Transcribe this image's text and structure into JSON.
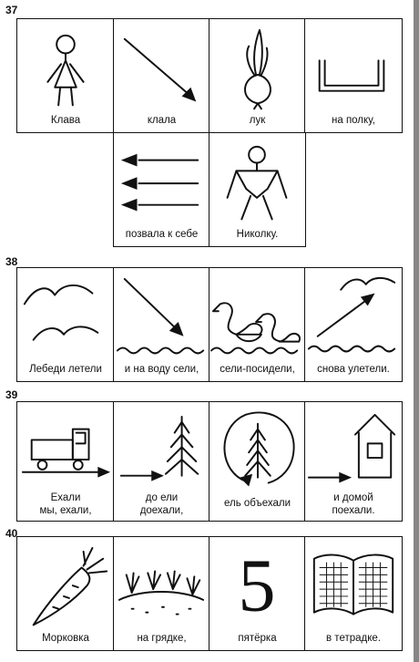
{
  "exercises": [
    {
      "number": "37",
      "cells": [
        {
          "caption": "Клава",
          "icon": "stick-figure-girl-icon"
        },
        {
          "caption": "клала",
          "icon": "arrow-down-right-icon"
        },
        {
          "caption": "лук",
          "icon": "onion-icon"
        },
        {
          "caption": "на полку,",
          "icon": "shelf-icon"
        },
        {
          "caption": "позвала к себе",
          "icon": "arrows-left-icon"
        },
        {
          "caption": "Николку.",
          "icon": "stick-figure-boy-icon"
        }
      ]
    },
    {
      "number": "38",
      "cells": [
        {
          "caption": "Лебеди летели",
          "icon": "flying-birds-icon"
        },
        {
          "caption": "и на воду сели,",
          "icon": "arrow-to-water-icon"
        },
        {
          "caption": "сели-посидели,",
          "icon": "swans-icon"
        },
        {
          "caption": "снова улетели.",
          "icon": "arrow-up-from-water-icon"
        }
      ]
    },
    {
      "number": "39",
      "cells": [
        {
          "caption_lines": [
            "Ехали",
            "мы, ехали,"
          ],
          "icon": "truck-icon"
        },
        {
          "caption_lines": [
            "до ели",
            "доехали,"
          ],
          "icon": "arrow-to-tree-icon"
        },
        {
          "caption": "ель объехали",
          "icon": "circle-around-tree-icon"
        },
        {
          "caption_lines": [
            "и домой",
            "поехали."
          ],
          "icon": "arrow-to-house-icon"
        }
      ]
    },
    {
      "number": "40",
      "cells": [
        {
          "caption": "Морковка",
          "icon": "carrot-icon"
        },
        {
          "caption": "на грядке,",
          "icon": "garden-bed-icon"
        },
        {
          "caption": "пятёрка",
          "icon": "digit-five-icon",
          "glyph": "5"
        },
        {
          "caption": "в тетрадке.",
          "icon": "open-notebook-icon"
        }
      ]
    }
  ]
}
